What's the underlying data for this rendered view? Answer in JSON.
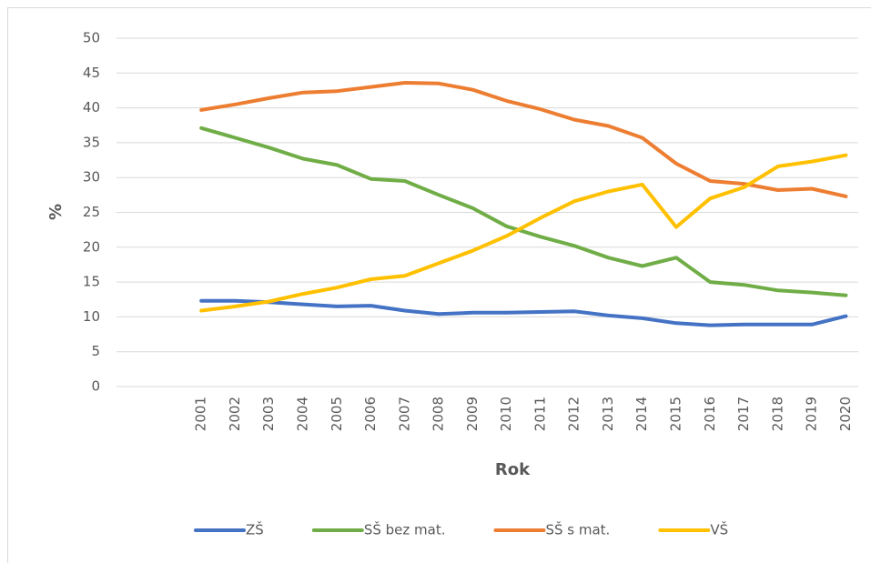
{
  "chart_data": {
    "type": "line",
    "y_label": "%",
    "x_label": "Rok",
    "categories": [
      null,
      null,
      "2001",
      "2002",
      "2003",
      "2004",
      "2005",
      "2006",
      "2007",
      "2008",
      "2009",
      "2010",
      "2011",
      "2012",
      "2013",
      "2014",
      "2015",
      "2016",
      "2017",
      "2018",
      "2019",
      "2020"
    ],
    "series": [
      {
        "name": "ZŠ",
        "color": "#4472c4",
        "values": [
          null,
          null,
          12.3,
          12.3,
          12.1,
          11.8,
          11.5,
          11.6,
          10.9,
          10.4,
          10.6,
          10.6,
          10.7,
          10.8,
          10.2,
          9.8,
          9.1,
          8.8,
          8.9,
          8.9,
          8.9,
          10.1
        ]
      },
      {
        "name": "SŠ bez mat.",
        "color": "#70ad47",
        "values": [
          null,
          null,
          37.1,
          35.7,
          34.3,
          32.7,
          31.8,
          29.8,
          29.5,
          27.5,
          25.6,
          23.0,
          21.5,
          20.2,
          18.5,
          17.3,
          18.5,
          15.0,
          14.6,
          13.8,
          13.5,
          13.1
        ]
      },
      {
        "name": "SŠ s mat.",
        "color": "#ed7d31",
        "values": [
          null,
          null,
          39.7,
          40.5,
          41.4,
          42.2,
          42.4,
          43.0,
          43.6,
          43.5,
          42.6,
          41.0,
          39.8,
          38.3,
          37.4,
          35.7,
          32.0,
          29.5,
          29.1,
          28.2,
          28.4,
          27.3
        ]
      },
      {
        "name": "VŠ",
        "color": "#ffc000",
        "values": [
          null,
          null,
          10.9,
          11.5,
          12.2,
          13.3,
          14.2,
          15.4,
          15.9,
          17.7,
          19.5,
          21.6,
          24.2,
          26.6,
          28.0,
          29.0,
          22.9,
          27.0,
          28.6,
          31.6,
          32.3,
          33.2
        ]
      }
    ],
    "ylim": [
      0,
      50
    ],
    "yticks": [
      0,
      5,
      10,
      15,
      20,
      25,
      30,
      35,
      40,
      45,
      50
    ],
    "grid": true,
    "legend": "bottom"
  }
}
